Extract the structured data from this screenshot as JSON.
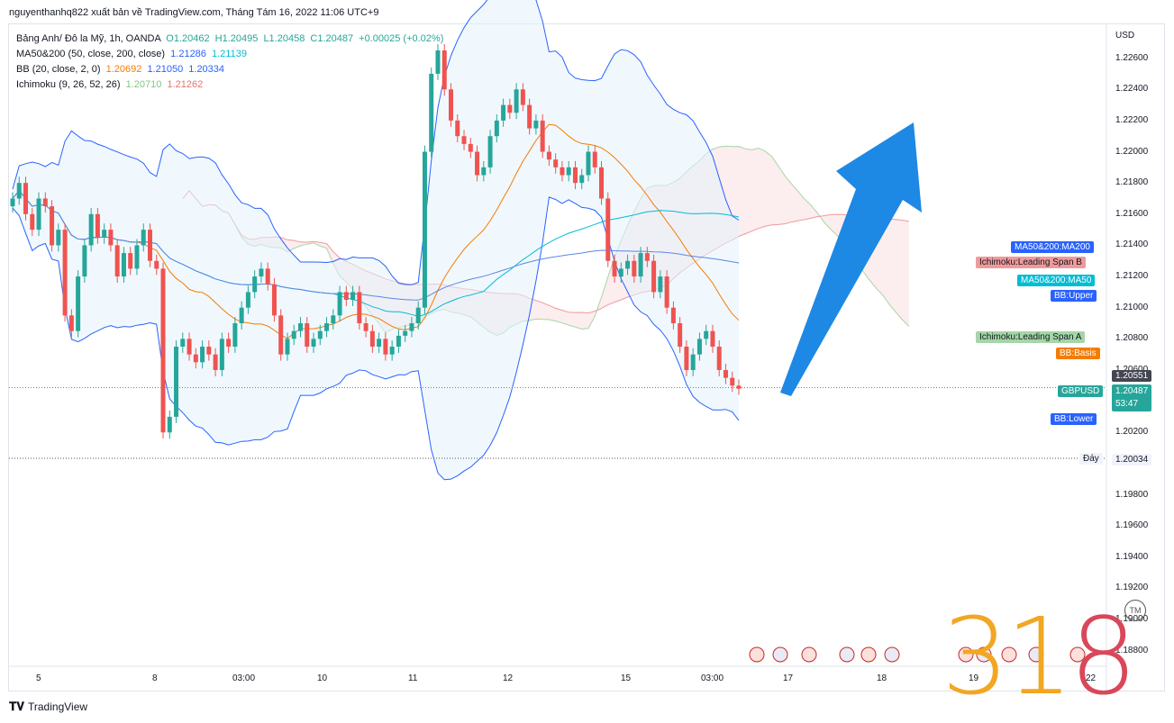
{
  "header": {
    "publisher_line": "nguyenthanhq822 xuất bản về TradingView.com, Tháng Tám 16, 2022 11:06 UTC+9"
  },
  "legend": {
    "symbol": "Bảng Anh/ Đô la Mỹ, 1h, OANDA",
    "ohlc": [
      "O1.20462",
      "H1.20495",
      "L1.20458",
      "C1.20487",
      "+0.00025 (+0.02%)"
    ],
    "ma": {
      "name": "MA50&200 (50, close, 200, close)",
      "values": [
        "1.21286",
        "1.21139"
      ]
    },
    "bb": {
      "name": "BB (20, close, 2, 0)",
      "values": [
        "1.20692",
        "1.21050",
        "1.20334"
      ]
    },
    "ichimoku": {
      "name": "Ichimoku (9, 26, 52, 26)",
      "values": [
        "1.20710",
        "1.21262"
      ]
    }
  },
  "axis": {
    "currency": "USD",
    "y_ticks": [
      "1.22600",
      "1.22400",
      "1.22200",
      "1.22000",
      "1.21800",
      "1.21600",
      "1.21400",
      "1.21200",
      "1.21000",
      "1.20800",
      "1.20600",
      "1.20200",
      "1.19800",
      "1.19600",
      "1.19400",
      "1.19200",
      "1.19000",
      "1.18800"
    ],
    "x_ticks": [
      "5",
      "8",
      "03:00",
      "10",
      "11",
      "12",
      "15",
      "03:00",
      "17",
      "18",
      "19",
      "22"
    ]
  },
  "tags": {
    "ma200": "MA50&200:MA200",
    "ich_b": "Ichimoku:Leading Span B",
    "ma50": "MA50&200:MA50",
    "bb_upper": "BB:Upper",
    "ich_a": "Ichimoku:Leading Span A",
    "bb_basis": "BB:Basis",
    "price_high": "1.20551",
    "symbol": "GBPUSD",
    "last_price": "1.20487",
    "countdown": "53:47",
    "bb_lower": "BB:Lower",
    "bottom_label": "Đáy",
    "bottom_price": "1.20034"
  },
  "watermark": {
    "left": "31",
    "right": "8"
  },
  "tm": "TM",
  "footer": {
    "brand": "TradingView"
  },
  "colors": {
    "up": "#26a69a",
    "down": "#ef5350",
    "bb": "#2962ff",
    "ma50": "#00bcd4",
    "ma200": "#5b86e5",
    "basis": "#f57c00",
    "span_a": "#a5d6a7",
    "span_b": "#ef9a9a",
    "arrow": "#1e88e5"
  },
  "chart_data": {
    "type": "candlestick",
    "symbol": "GBPUSD",
    "timeframe": "1h",
    "ylim": [
      1.187,
      1.228
    ],
    "last_price": 1.20487,
    "support": 1.20034,
    "resistance_tag": 1.20551,
    "series": [
      {
        "name": "close_path",
        "values": [
          1.217,
          1.218,
          1.216,
          1.215,
          1.217,
          1.2165,
          1.214,
          1.215,
          1.2095,
          1.2085,
          1.212,
          1.214,
          1.216,
          1.2145,
          1.215,
          1.214,
          1.212,
          1.2135,
          1.2125,
          1.214,
          1.215,
          1.213,
          1.2125,
          1.202,
          1.203,
          1.2075,
          1.208,
          1.207,
          1.2065,
          1.2075,
          1.207,
          1.206,
          1.208,
          1.2075,
          1.209,
          1.21,
          1.211,
          1.212,
          1.2125,
          1.2115,
          1.2095,
          1.207,
          1.208,
          1.2085,
          1.209,
          1.2075,
          1.208,
          1.2085,
          1.209,
          1.2095,
          1.211,
          1.2105,
          1.211,
          1.209,
          1.2085,
          1.2075,
          1.208,
          1.207,
          1.2075,
          1.2082,
          1.2085,
          1.209,
          1.21,
          1.22,
          1.225,
          1.2265,
          1.224,
          1.222,
          1.221,
          1.2205,
          1.22,
          1.2185,
          1.219,
          1.221,
          1.222,
          1.223,
          1.2225,
          1.224,
          1.223,
          1.2215,
          1.222,
          1.22,
          1.2195,
          1.219,
          1.2185,
          1.219,
          1.218,
          1.2185,
          1.22,
          1.219,
          1.217,
          1.213,
          1.212,
          1.2125,
          1.213,
          1.212,
          1.2135,
          1.213,
          1.211,
          1.212,
          1.21,
          1.209,
          1.2075,
          1.206,
          1.207,
          1.208,
          1.2085,
          1.2075,
          1.206,
          1.2055,
          1.205,
          1.2048
        ]
      }
    ]
  }
}
